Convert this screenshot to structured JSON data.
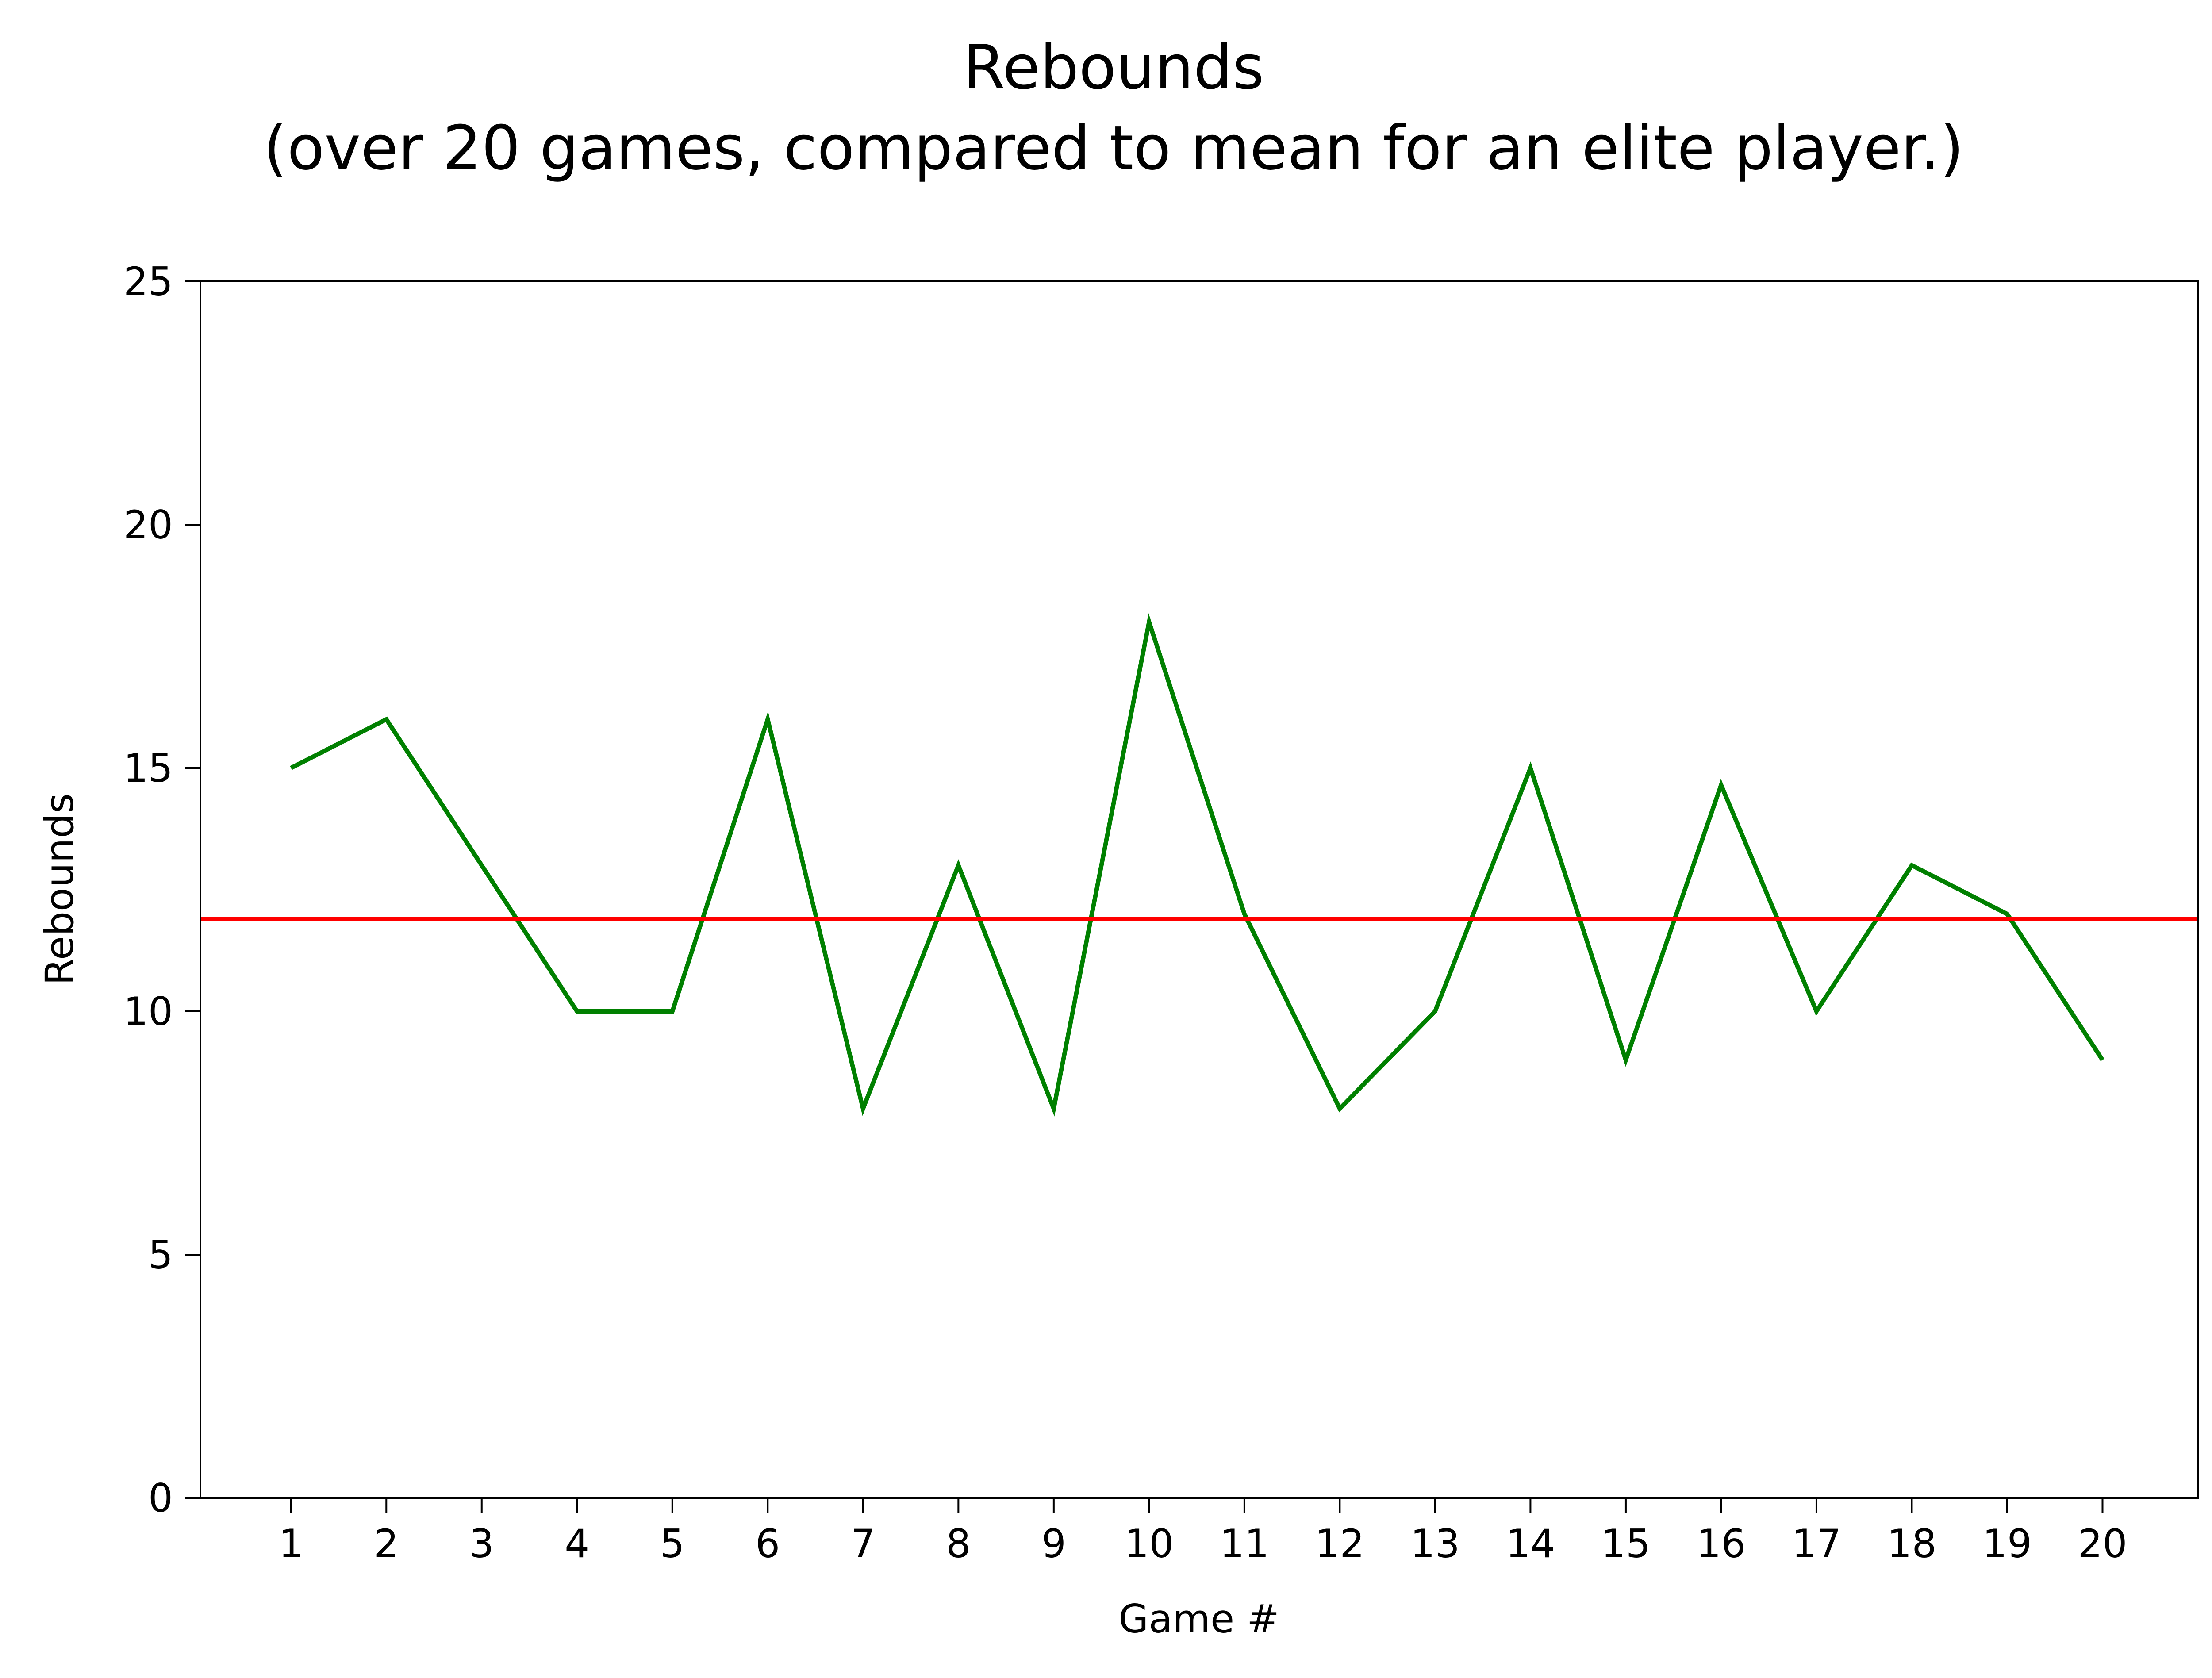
{
  "chart_data": {
    "type": "line",
    "title": "Rebounds",
    "subtitle": "(over 20 games, compared to mean for an elite player.)",
    "xlabel": "Game #",
    "ylabel": "Rebounds",
    "x": [
      1,
      2,
      3,
      4,
      5,
      6,
      7,
      8,
      9,
      10,
      11,
      12,
      13,
      14,
      15,
      16,
      17,
      18,
      19,
      20
    ],
    "xticks": [
      "1",
      "2",
      "3",
      "4",
      "5",
      "6",
      "7",
      "8",
      "9",
      "10",
      "11",
      "12",
      "13",
      "14",
      "15",
      "16",
      "17",
      "18",
      "19",
      "20"
    ],
    "yticks": [
      "0",
      "5",
      "10",
      "15",
      "20",
      "25"
    ],
    "xlim": [
      0.05,
      21
    ],
    "ylim": [
      0,
      25
    ],
    "grid": false,
    "series": [
      {
        "values": [
          15,
          16,
          13,
          10,
          10,
          16,
          8,
          13,
          8,
          18,
          12,
          8,
          10,
          15,
          9,
          14.65,
          10,
          13,
          12,
          9
        ],
        "color": "#008000"
      }
    ],
    "reference_line": {
      "value": 11.9,
      "color": "#ff0000"
    }
  }
}
